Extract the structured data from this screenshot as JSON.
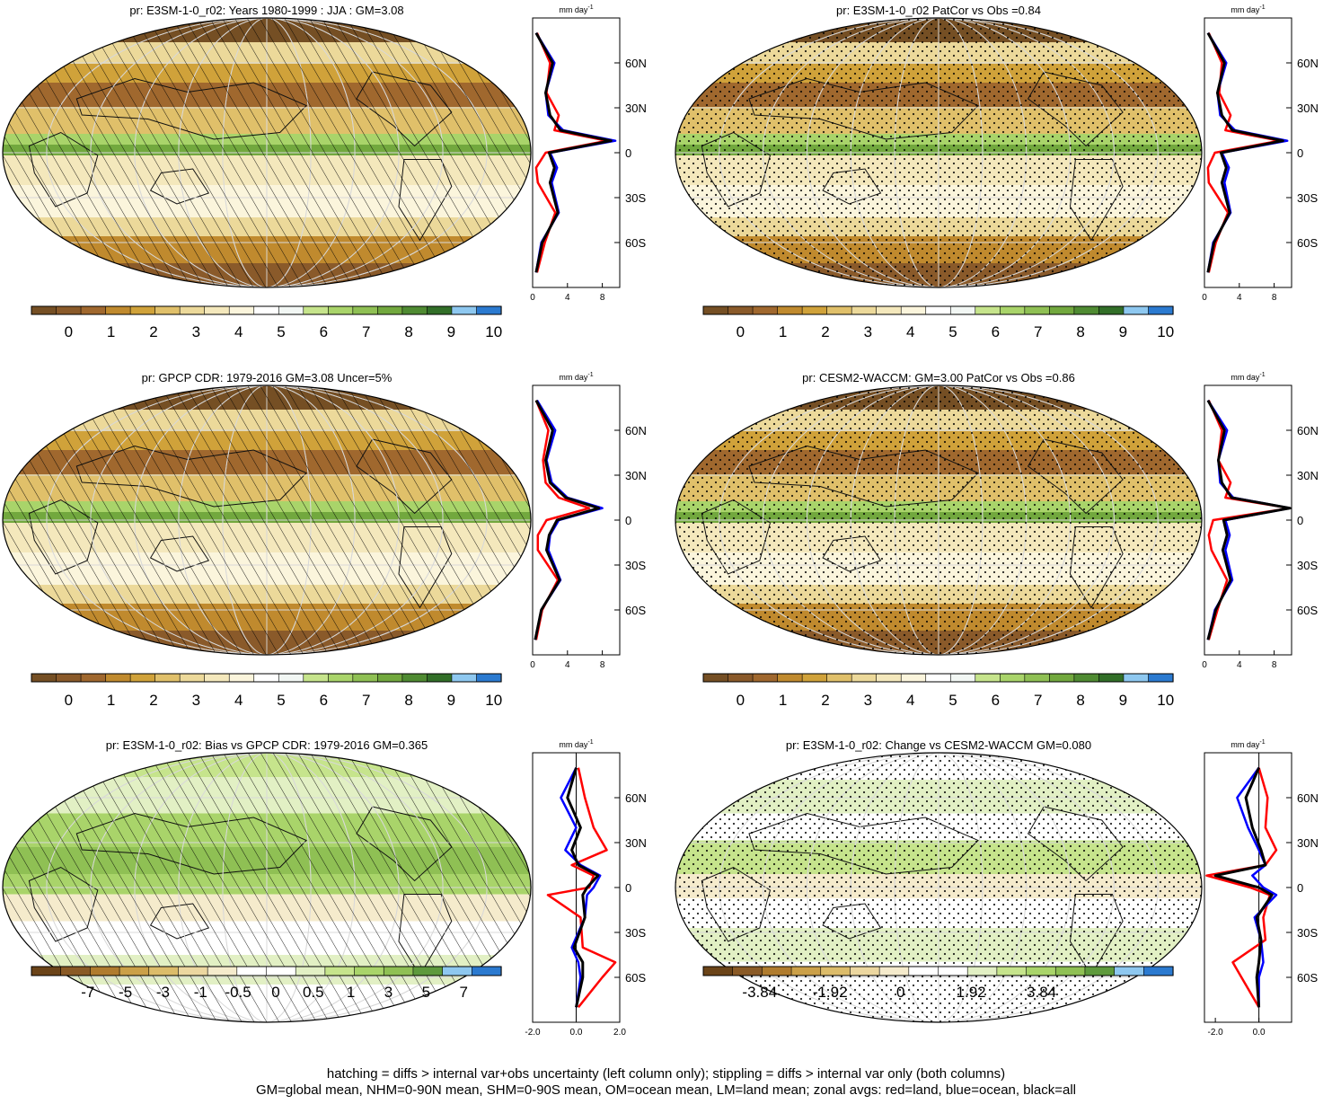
{
  "colors": {
    "land": "#ff0000",
    "ocean": "#0000ff",
    "all": "#000000",
    "abs_palette": [
      "#754f24",
      "#8a5a2a",
      "#a0682e",
      "#c08a2e",
      "#d0a23a",
      "#e0c06a",
      "#ecd99a",
      "#f4e8bc",
      "#fbf5dc",
      "#ffffff",
      "#f2f7f4",
      "#c6e48c",
      "#a9d46a",
      "#8fc054",
      "#72a83e",
      "#4f8b32",
      "#326f28",
      "#8ec8f0",
      "#2b7ad0"
    ],
    "diff_palette": [
      "#6b4418",
      "#8a5a26",
      "#b07c2e",
      "#cba048",
      "#dcbc6a",
      "#ecd7a0",
      "#f5ebcc",
      "#ffffff",
      "#ffffff",
      "#e2f0c4",
      "#c6e48c",
      "#a9d46a",
      "#8fc054",
      "#5e9a3c",
      "#8ec8f0",
      "#2b7ad0"
    ]
  },
  "panels": [
    {
      "id": "p1",
      "title": "pr: E3SM-1-0_r02: Years 1980-1999 : JJA : GM=3.08",
      "overlay": "hatch",
      "kind": "abs"
    },
    {
      "id": "p2",
      "title": "pr: E3SM-1-0_r02 PatCor vs Obs =0.84",
      "overlay": "stipple",
      "kind": "abs"
    },
    {
      "id": "p3",
      "title": "pr: GPCP CDR: 1979-2016 GM=3.08 Uncer=5%",
      "overlay": "hatch",
      "kind": "abs"
    },
    {
      "id": "p4",
      "title": "pr: CESM2-WACCM: GM=3.00 PatCor vs Obs =0.86",
      "overlay": "stipple",
      "kind": "abs"
    },
    {
      "id": "p5",
      "title": "pr: E3SM-1-0_r02: Bias vs GPCP CDR: 1979-2016 GM=0.365",
      "overlay": "hatch",
      "kind": "bias"
    },
    {
      "id": "p6",
      "title": "pr: E3SM-1-0_r02: Change vs CESM2-WACCM GM=0.080",
      "overlay": "stipple",
      "kind": "change"
    }
  ],
  "colorbars": {
    "abs_labels": [
      "0",
      "1",
      "2",
      "3",
      "4",
      "5",
      "6",
      "7",
      "8",
      "9",
      "10"
    ],
    "bias_labels": [
      "-7",
      "-5",
      "-3",
      "-1",
      "-0.5",
      "0",
      "0.5",
      "1",
      "3",
      "5",
      "7"
    ],
    "change_labels": [
      "-3.84",
      "-1.92",
      "0",
      "1.92",
      "3.84"
    ]
  },
  "zonal": {
    "units": "mm day",
    "units_sup": "-1",
    "lat_ticks": [
      "60N",
      "30N",
      "0",
      "30S",
      "60S"
    ],
    "x_ticks_abs": [
      "0",
      "4",
      "8"
    ],
    "x_ticks_bias": [
      "-2.0",
      "0.0",
      "2.0"
    ],
    "x_ticks_change": [
      "-2.0",
      "0.0"
    ]
  },
  "chart_data": [
    {
      "type": "line",
      "title": "pr: E3SM-1-0_r02: Years 1980-1999 : JJA : GM=3.08",
      "xlabel": "mm day-1",
      "xlim": [
        0,
        10
      ],
      "ylim": [
        -90,
        90
      ],
      "y": [
        -80,
        -60,
        -40,
        -20,
        -10,
        0,
        8,
        15,
        25,
        40,
        60,
        80
      ],
      "series": [
        {
          "name": "red",
          "values": [
            0.5,
            1.4,
            2.6,
            0.6,
            0.4,
            1.5,
            8.5,
            2.5,
            3.0,
            1.6,
            2.0,
            0.5
          ]
        },
        {
          "name": "blue",
          "values": [
            0.4,
            1.0,
            3.0,
            2.2,
            2.8,
            2.0,
            9.5,
            3.5,
            1.8,
            1.5,
            2.5,
            0.4
          ]
        },
        {
          "name": "black",
          "values": [
            0.4,
            1.1,
            2.9,
            2.0,
            2.5,
            1.9,
            9.0,
            3.2,
            2.0,
            1.5,
            2.3,
            0.4
          ]
        }
      ]
    },
    {
      "type": "line",
      "title": "pr: E3SM-1-0_r02 PatCor vs Obs =0.84",
      "xlabel": "mm day-1",
      "xlim": [
        0,
        10
      ],
      "ylim": [
        -90,
        90
      ],
      "y": [
        -80,
        -60,
        -40,
        -20,
        -10,
        0,
        8,
        15,
        25,
        40,
        60,
        80
      ],
      "series": [
        {
          "name": "red",
          "values": [
            0.5,
            1.3,
            2.7,
            0.5,
            0.4,
            1.2,
            8.6,
            2.4,
            3.0,
            1.7,
            2.0,
            0.5
          ]
        },
        {
          "name": "blue",
          "values": [
            0.4,
            1.0,
            3.0,
            2.3,
            2.8,
            2.0,
            9.5,
            3.5,
            1.8,
            1.5,
            2.5,
            0.4
          ]
        },
        {
          "name": "black",
          "values": [
            0.4,
            1.1,
            2.9,
            2.0,
            2.5,
            1.9,
            9.0,
            3.2,
            2.0,
            1.5,
            2.3,
            0.4
          ]
        }
      ]
    },
    {
      "type": "line",
      "title": "pr: GPCP CDR: 1979-2016 GM=3.08 Uncer=5%",
      "xlabel": "mm day-1",
      "xlim": [
        0,
        10
      ],
      "ylim": [
        -90,
        90
      ],
      "y": [
        -80,
        -60,
        -40,
        -20,
        -10,
        0,
        8,
        15,
        25,
        40,
        60,
        80
      ],
      "series": [
        {
          "name": "red",
          "values": [
            0.4,
            1.1,
            2.9,
            0.6,
            0.6,
            1.6,
            6.5,
            3.0,
            1.5,
            1.2,
            1.8,
            0.4
          ]
        },
        {
          "name": "blue",
          "values": [
            0.3,
            1.0,
            3.2,
            1.8,
            2.0,
            3.0,
            8.0,
            4.0,
            2.2,
            1.6,
            2.6,
            0.5
          ]
        },
        {
          "name": "black",
          "values": [
            0.3,
            1.0,
            3.1,
            1.6,
            1.9,
            2.8,
            7.6,
            3.8,
            2.0,
            1.5,
            2.3,
            0.4
          ]
        }
      ]
    },
    {
      "type": "line",
      "title": "pr: CESM2-WACCM: GM=3.00 PatCor vs Obs =0.86",
      "xlabel": "mm day-1",
      "xlim": [
        0,
        10
      ],
      "ylim": [
        -90,
        90
      ],
      "y": [
        -80,
        -60,
        -40,
        -20,
        -10,
        0,
        8,
        15,
        25,
        40,
        60,
        80
      ],
      "series": [
        {
          "name": "red",
          "values": [
            0.5,
            1.5,
            2.6,
            0.8,
            0.5,
            1.0,
            9.8,
            2.4,
            3.0,
            1.6,
            2.0,
            0.5
          ]
        },
        {
          "name": "blue",
          "values": [
            0.4,
            1.2,
            3.2,
            2.4,
            2.9,
            2.4,
            9.8,
            3.3,
            1.8,
            1.6,
            2.6,
            0.4
          ]
        },
        {
          "name": "black",
          "values": [
            0.4,
            1.3,
            3.0,
            2.1,
            2.6,
            2.2,
            9.8,
            3.1,
            2.0,
            1.6,
            2.3,
            0.4
          ]
        }
      ]
    },
    {
      "type": "line",
      "title": "pr: E3SM-1-0_r02: Bias vs GPCP CDR: 1979-2016 GM=0.365",
      "xlabel": "mm day-1",
      "xlim": [
        -2,
        2
      ],
      "ylim": [
        -90,
        90
      ],
      "y": [
        -80,
        -60,
        -50,
        -40,
        -20,
        -5,
        0,
        8,
        15,
        25,
        40,
        60,
        80
      ],
      "series": [
        {
          "name": "red",
          "values": [
            0.1,
            1.2,
            1.8,
            0.3,
            0.2,
            -1.3,
            0.6,
            0.8,
            -0.2,
            1.4,
            0.8,
            0.4,
            0.1
          ]
        },
        {
          "name": "blue",
          "values": [
            0.0,
            0.2,
            0.1,
            -0.2,
            0.4,
            0.5,
            0.8,
            1.1,
            0.2,
            -0.5,
            0.0,
            -0.7,
            0.0
          ]
        },
        {
          "name": "black",
          "values": [
            0.0,
            0.3,
            0.3,
            -0.1,
            0.4,
            0.3,
            0.5,
            1.0,
            0.1,
            -0.2,
            0.2,
            -0.4,
            0.0
          ]
        }
      ]
    },
    {
      "type": "line",
      "title": "pr: E3SM-1-0_r02: Change vs CESM2-WACCM GM=0.080",
      "xlabel": "mm day-1",
      "xlim": [
        -2.5,
        1.5
      ],
      "ylim": [
        -90,
        90
      ],
      "y": [
        -80,
        -60,
        -50,
        -35,
        -20,
        -5,
        0,
        8,
        15,
        25,
        40,
        60,
        80
      ],
      "series": [
        {
          "name": "red",
          "values": [
            0.0,
            -0.8,
            -1.2,
            0.3,
            0.2,
            0.5,
            -0.4,
            -2.4,
            0.3,
            0.8,
            0.3,
            0.4,
            0.0
          ]
        },
        {
          "name": "blue",
          "values": [
            0.0,
            0.0,
            0.2,
            0.1,
            -0.2,
            0.8,
            0.2,
            -0.3,
            0.3,
            0.0,
            -0.5,
            -1.0,
            0.0
          ]
        },
        {
          "name": "black",
          "values": [
            0.0,
            -0.1,
            0.0,
            0.1,
            -0.1,
            0.6,
            0.0,
            -2.0,
            0.3,
            0.1,
            -0.3,
            -0.6,
            0.0
          ]
        }
      ]
    }
  ],
  "footer": {
    "line1": "hatching = diffs > internal var+obs uncertainty (left column only); stippling = diffs > internal var only (both columns)",
    "line2": "GM=global mean, NHM=0-90N mean, SHM=0-90S mean, OM=ocean mean, LM=land mean; zonal avgs: red=land, blue=ocean, black=all"
  }
}
